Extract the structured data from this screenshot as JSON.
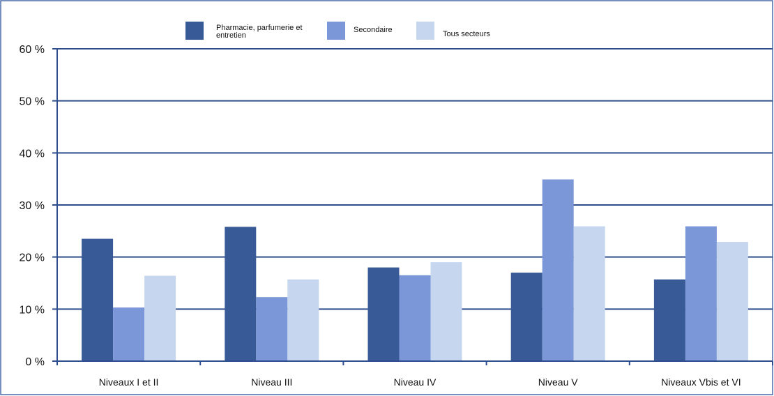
{
  "chart_data": {
    "type": "bar",
    "title": "",
    "xlabel": "",
    "ylabel": "",
    "categories": [
      "Niveaux I et II",
      "Niveau III",
      "Niveau IV",
      "Niveau V",
      "Niveaux Vbis et VI"
    ],
    "series": [
      {
        "name": "Pharmacie, parfumerie et entretien",
        "color": "#385a96",
        "values": [
          23.5,
          25.8,
          18.0,
          17.0,
          15.7
        ]
      },
      {
        "name": "Secondaire",
        "color": "#7b97d7",
        "values": [
          10.3,
          12.3,
          16.5,
          34.9,
          25.9
        ]
      },
      {
        "name": "Tous secteurs",
        "color": "#c6d6ef",
        "values": [
          16.4,
          15.7,
          19.0,
          25.9,
          22.9
        ]
      }
    ],
    "ylim": [
      0,
      60
    ],
    "yticks": [
      0,
      10,
      20,
      30,
      40,
      50,
      60
    ],
    "ytick_labels": [
      "0 %",
      "10 %",
      "20 %",
      "30 %",
      "40 %",
      "50 %",
      "60 %"
    ],
    "grid": true,
    "legend_position": "top"
  }
}
